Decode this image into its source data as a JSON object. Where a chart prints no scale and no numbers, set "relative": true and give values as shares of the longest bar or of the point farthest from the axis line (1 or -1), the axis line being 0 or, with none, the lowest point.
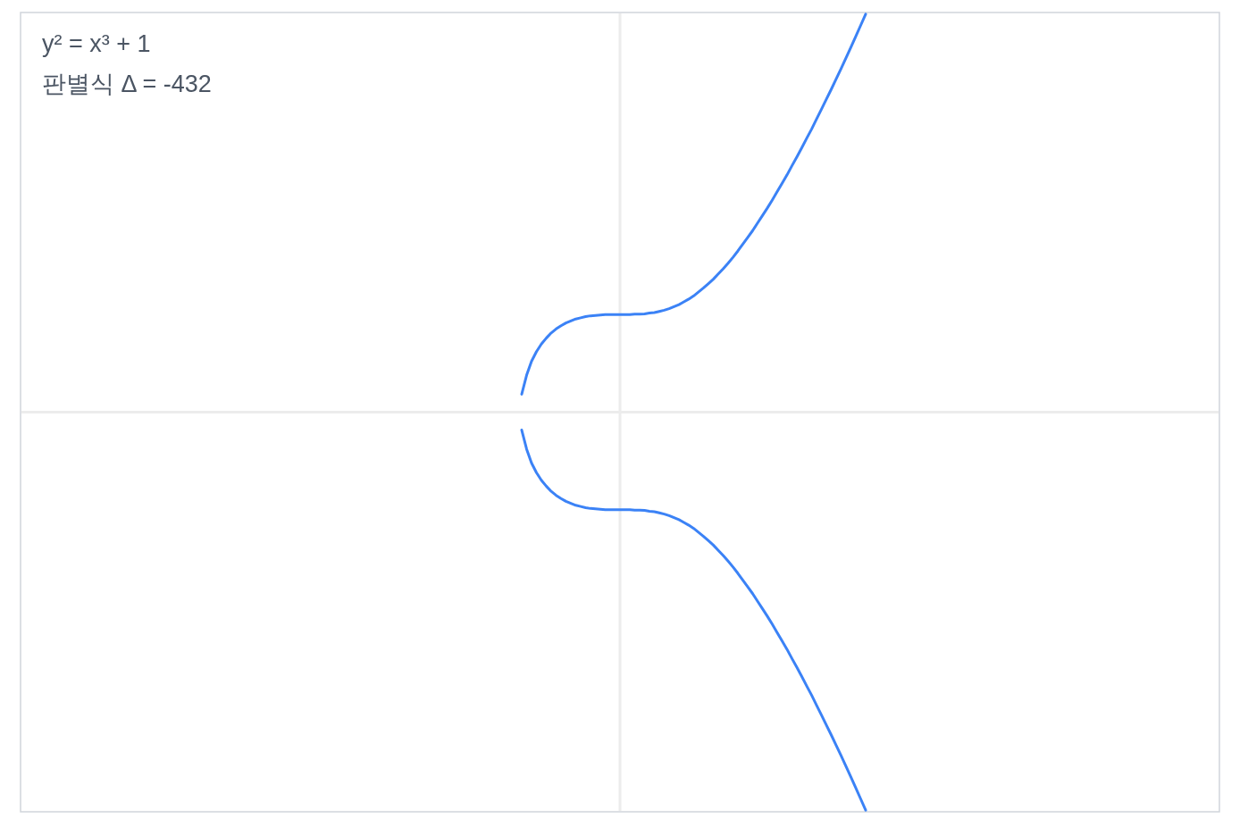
{
  "chart_data": {
    "type": "line",
    "relative": true,
    "annotations": [
      "y² = x³ + 1",
      "판별식 Δ = -432"
    ],
    "categories": [
      null,
      null,
      null,
      null,
      null,
      null,
      null,
      null,
      null,
      null,
      null,
      null,
      null,
      null,
      null,
      null,
      null,
      null,
      null,
      null,
      null,
      null,
      null,
      null,
      null,
      null,
      null,
      null,
      null,
      null,
      null,
      null,
      null,
      null,
      null,
      null,
      null,
      null,
      null,
      null,
      null,
      null,
      null,
      null,
      null,
      null,
      null,
      null,
      null,
      null,
      null,
      null,
      null,
      null,
      null,
      null,
      null,
      null,
      null,
      null,
      null,
      null,
      null,
      null,
      null,
      null,
      null,
      null,
      null,
      null,
      null,
      null,
      null,
      null,
      null,
      null,
      null,
      null,
      null,
      null,
      null,
      null,
      null,
      null,
      null,
      null,
      null,
      null,
      null,
      null,
      null,
      null,
      null,
      null,
      null,
      null,
      null,
      null,
      null,
      null,
      null,
      null,
      null,
      null,
      null,
      null,
      null,
      null,
      null,
      null,
      null,
      null,
      null,
      null,
      null,
      null,
      null,
      null,
      null,
      null,
      null,
      null,
      null,
      null,
      null,
      null,
      null,
      null,
      null,
      null,
      null,
      null,
      null,
      null,
      null,
      null,
      null,
      null,
      null,
      null,
      null,
      null,
      null,
      null,
      null,
      null,
      null,
      null,
      null,
      null,
      null,
      null,
      null,
      null,
      null,
      null,
      null,
      null,
      null,
      null,
      null,
      null,
      null,
      null,
      null,
      null,
      null,
      null,
      null,
      null,
      null,
      null,
      null,
      null,
      null,
      null,
      null,
      null,
      null,
      null,
      null,
      null,
      null,
      null,
      null,
      null,
      null,
      null,
      null,
      null,
      null,
      null,
      null,
      null,
      null,
      null,
      null,
      null,
      null,
      null,
      null,
      null,
      null,
      null,
      null,
      null,
      null,
      null,
      null,
      null,
      null,
      null,
      null,
      null,
      null,
      null,
      null,
      null,
      null,
      null,
      null,
      null,
      null,
      null,
      null,
      null,
      null,
      null,
      null,
      null,
      null,
      null,
      null,
      null,
      null,
      null,
      null,
      null,
      null,
      null,
      null,
      null,
      null,
      null,
      null
    ],
    "series": [
      {
        "color": "#3b82f6",
        "values": [
          null,
          null,
          null,
          null,
          null,
          null,
          null,
          null,
          null,
          null,
          null,
          null,
          null,
          null,
          null,
          null,
          null,
          null,
          null,
          null,
          null,
          null,
          null,
          null,
          null,
          null,
          null,
          null,
          null,
          null,
          null,
          null,
          null,
          null,
          null,
          null,
          null,
          null,
          null,
          null,
          null,
          null,
          null,
          null,
          null,
          null,
          null,
          null,
          null,
          null,
          null,
          null,
          null,
          null,
          null,
          null,
          null,
          null,
          null,
          null,
          null,
          null,
          null,
          null,
          null,
          null,
          null,
          null,
          null,
          null,
          null,
          null,
          null,
          null,
          null,
          null,
          null,
          null,
          null,
          null,
          null,
          null,
          null,
          null,
          null,
          null,
          null,
          null,
          null,
          null,
          null,
          null,
          null,
          null,
          null,
          null,
          null,
          null,
          null,
          null,
          null,
          null,
          0.045,
          0.093,
          0.128,
          0.152,
          0.171,
          0.186,
          0.199,
          0.209,
          0.217,
          0.224,
          0.229,
          0.234,
          0.237,
          0.24,
          0.242,
          0.243,
          0.244,
          0.245,
          0.245,
          0.245,
          0.245,
          0.245,
          0.245,
          0.246,
          0.246,
          0.247,
          0.249,
          0.25,
          0.253,
          0.256,
          0.26,
          0.265,
          0.27,
          0.277,
          0.284,
          0.292,
          0.302,
          0.312,
          0.323,
          0.334,
          0.347,
          0.36,
          0.374,
          0.389,
          0.405,
          0.422,
          0.439,
          0.456,
          0.475,
          0.494,
          0.513,
          0.533,
          0.554,
          0.575,
          0.596,
          0.619,
          0.641,
          0.664,
          0.688,
          0.711,
          0.736,
          0.761,
          0.786,
          0.811,
          0.837,
          0.863,
          0.89,
          0.917,
          0.944,
          0.972,
          1,
          null,
          null,
          null,
          null,
          null,
          null,
          null,
          null,
          null,
          null,
          null,
          null,
          null,
          null,
          null,
          null,
          null,
          null,
          null,
          null,
          null,
          null,
          null,
          null,
          null,
          null,
          null,
          null,
          null,
          null,
          null,
          null,
          null,
          null,
          null,
          null,
          null,
          null,
          null,
          null,
          null,
          null,
          null,
          null,
          null,
          null,
          null,
          null,
          null,
          null,
          null,
          null,
          null,
          null,
          null,
          null,
          null,
          null,
          null,
          null,
          null,
          null,
          null,
          null,
          null,
          null,
          null,
          null,
          null,
          null,
          null,
          null
        ]
      },
      {
        "color": "#3b82f6",
        "values": [
          null,
          null,
          null,
          null,
          null,
          null,
          null,
          null,
          null,
          null,
          null,
          null,
          null,
          null,
          null,
          null,
          null,
          null,
          null,
          null,
          null,
          null,
          null,
          null,
          null,
          null,
          null,
          null,
          null,
          null,
          null,
          null,
          null,
          null,
          null,
          null,
          null,
          null,
          null,
          null,
          null,
          null,
          null,
          null,
          null,
          null,
          null,
          null,
          null,
          null,
          null,
          null,
          null,
          null,
          null,
          null,
          null,
          null,
          null,
          null,
          null,
          null,
          null,
          null,
          null,
          null,
          null,
          null,
          null,
          null,
          null,
          null,
          null,
          null,
          null,
          null,
          null,
          null,
          null,
          null,
          null,
          null,
          null,
          null,
          null,
          null,
          null,
          null,
          null,
          null,
          null,
          null,
          null,
          null,
          null,
          null,
          null,
          null,
          null,
          null,
          null,
          null,
          -0.045,
          -0.093,
          -0.128,
          -0.152,
          -0.171,
          -0.186,
          -0.199,
          -0.209,
          -0.217,
          -0.224,
          -0.229,
          -0.234,
          -0.237,
          -0.24,
          -0.242,
          -0.243,
          -0.244,
          -0.245,
          -0.245,
          -0.245,
          -0.245,
          -0.245,
          -0.245,
          -0.246,
          -0.246,
          -0.247,
          -0.249,
          -0.25,
          -0.253,
          -0.256,
          -0.26,
          -0.265,
          -0.27,
          -0.277,
          -0.284,
          -0.292,
          -0.302,
          -0.312,
          -0.323,
          -0.334,
          -0.347,
          -0.36,
          -0.374,
          -0.389,
          -0.405,
          -0.422,
          -0.439,
          -0.456,
          -0.475,
          -0.494,
          -0.513,
          -0.533,
          -0.554,
          -0.575,
          -0.596,
          -0.619,
          -0.641,
          -0.664,
          -0.688,
          -0.711,
          -0.736,
          -0.761,
          -0.786,
          -0.811,
          -0.837,
          -0.863,
          -0.89,
          -0.917,
          -0.944,
          -0.972,
          -1,
          null,
          null,
          null,
          null,
          null,
          null,
          null,
          null,
          null,
          null,
          null,
          null,
          null,
          null,
          null,
          null,
          null,
          null,
          null,
          null,
          null,
          null,
          null,
          null,
          null,
          null,
          null,
          null,
          null,
          null,
          null,
          null,
          null,
          null,
          null,
          null,
          null,
          null,
          null,
          null,
          null,
          null,
          null,
          null,
          null,
          null,
          null,
          null,
          null,
          null,
          null,
          null,
          null,
          null,
          null,
          null,
          null,
          null,
          null,
          null,
          null,
          null,
          null,
          null,
          null,
          null,
          null,
          null,
          null,
          null,
          null,
          null
        ]
      }
    ]
  }
}
